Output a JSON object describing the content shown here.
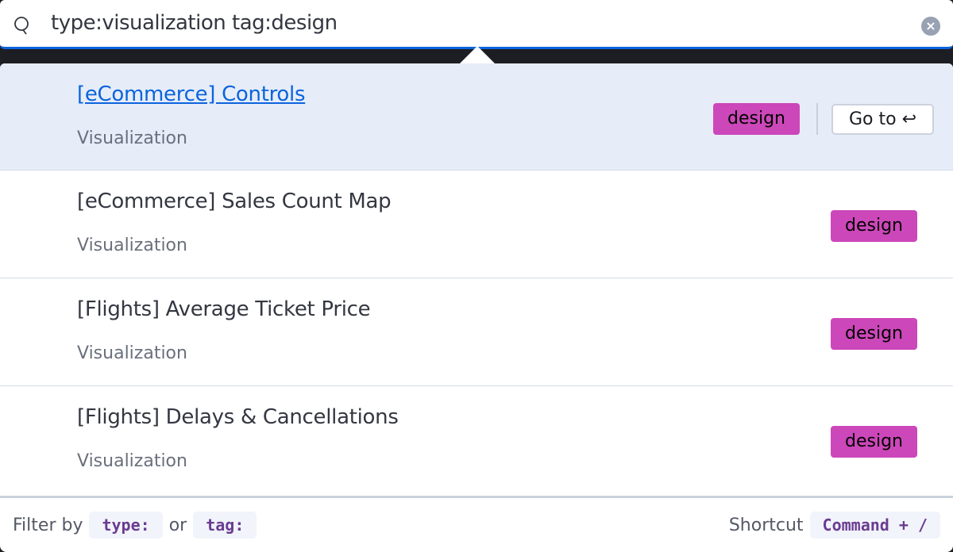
{
  "search": {
    "value": "type:visualization tag:design",
    "icon": "search-icon",
    "clear_icon": "clear-icon"
  },
  "results": [
    {
      "title": "[eCommerce] Controls",
      "type": "Visualization",
      "tag": "design",
      "active": true
    },
    {
      "title": "[eCommerce] Sales Count Map",
      "type": "Visualization",
      "tag": "design"
    },
    {
      "title": "[Flights] Average Ticket Price",
      "type": "Visualization",
      "tag": "design"
    },
    {
      "title": "[Flights] Delays & Cancellations",
      "type": "Visualization",
      "tag": "design"
    }
  ],
  "goto": {
    "label": "Go to",
    "icon": "return-icon",
    "glyph": "↩"
  },
  "footer": {
    "filter_by": "Filter by",
    "type_code": "type:",
    "or": "or",
    "tag_code": "tag:",
    "shortcut": "Shortcut",
    "shortcut_keys": "Command + /"
  },
  "colors": {
    "accent": "#0b64dd",
    "tag": "#cc47b9",
    "active_row": "#e6edf8"
  }
}
